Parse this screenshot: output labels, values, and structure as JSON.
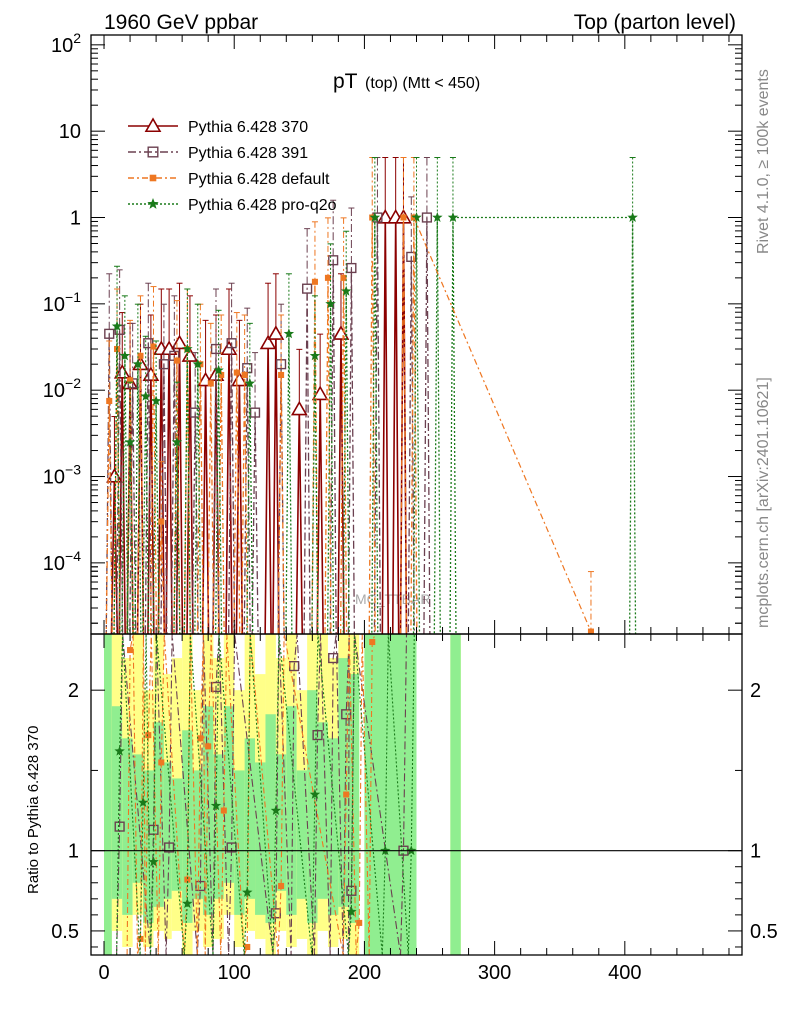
{
  "header": {
    "left_label": "1960 GeV ppbar",
    "right_label": "Top (parton level)"
  },
  "side_labels": {
    "rivet": "Rivet 4.1.0, ≥ 100k events",
    "mcplots": "mcplots.cern.ch [arXiv:2401.10621]"
  },
  "colors": {
    "pythia_370": "#8b0000",
    "pythia_391": "#6b4050",
    "pythia_default": "#ee7722",
    "pythia_pro_q2o": "#1a7a1a",
    "band_green": "#90ee90",
    "band_yellow": "#ffff88"
  },
  "chart_data": [
    {
      "type": "scatter",
      "panel": "main",
      "title": "pT",
      "title_sub": "(top) (Mtt < 450)",
      "watermark": "MC_TTBAR",
      "yscale": "log",
      "ylim": [
        1.5e-05,
        130
      ],
      "xlim": [
        -10,
        490
      ],
      "y_ticks": [
        {
          "value": 100,
          "base": "10",
          "exp": "2"
        },
        {
          "value": 10,
          "base": "10",
          "exp": ""
        },
        {
          "value": 1,
          "base": "1",
          "exp": ""
        },
        {
          "value": 0.1,
          "base": "10",
          "exp": "−1"
        },
        {
          "value": 0.01,
          "base": "10",
          "exp": "−2"
        },
        {
          "value": 0.001,
          "base": "10",
          "exp": "−3"
        },
        {
          "value": 0.0001,
          "base": "10",
          "exp": "−4"
        }
      ],
      "legend": [
        {
          "label": "Pythia 6.428 370",
          "marker": "triangle",
          "dash": "",
          "series": 0
        },
        {
          "label": "Pythia 6.428 391",
          "marker": "square-open",
          "dash": "8,3,2,3",
          "series": 1
        },
        {
          "label": "Pythia 6.428 default",
          "marker": "square-filled",
          "dash": "6,3,2,3",
          "series": 2
        },
        {
          "label": "Pythia 6.428 pro-q2o",
          "marker": "star",
          "dash": "2,2",
          "series": 3
        }
      ],
      "series": [
        {
          "name": "Pythia 6.428 370",
          "x": [
            8,
            14,
            20,
            28,
            36,
            44,
            50,
            58,
            66,
            78,
            86,
            96,
            104,
            126,
            132,
            150,
            166,
            182,
            216,
            224,
            230
          ],
          "y": [
            0.001,
            0.016,
            0.012,
            0.02,
            0.015,
            0.03,
            0.03,
            0.035,
            0.025,
            0.013,
            0.015,
            0.03,
            0.013,
            0.035,
            0.045,
            0.006,
            0.009,
            0.045,
            1.0,
            1.0,
            1.0
          ]
        },
        {
          "name": "Pythia 6.428 391",
          "x": [
            4,
            12,
            22,
            34,
            46,
            54,
            70,
            86,
            98,
            110,
            116,
            136,
            156,
            176,
            190,
            210,
            236,
            248
          ],
          "y": [
            0.045,
            0.05,
            0.012,
            0.035,
            0.02,
            0.025,
            0.0055,
            0.03,
            0.035,
            0.018,
            0.0055,
            0.02,
            0.15,
            0.32,
            0.26,
            1.0,
            0.35,
            1.0
          ]
        },
        {
          "name": "Pythia 6.428 default",
          "x": [
            4,
            10,
            20,
            28,
            38,
            44,
            56,
            64,
            74,
            82,
            90,
            102,
            108,
            136,
            162,
            172,
            184,
            206,
            230,
            238,
            374
          ],
          "y": [
            0.0075,
            0.03,
            0.013,
            0.025,
            0.032,
            0.0003,
            0.022,
            0.03,
            0.02,
            0.012,
            0.015,
            0.016,
            0.015,
            0.015,
            0.18,
            0.2,
            0.2,
            1.0,
            1.0,
            1.0,
            1.6e-05
          ]
        },
        {
          "name": "Pythia 6.428 pro-q2o",
          "x": [
            10,
            16,
            20,
            26,
            32,
            40,
            56,
            64,
            72,
            88,
            112,
            142,
            162,
            174,
            186,
            208,
            240,
            256,
            268,
            406
          ],
          "y": [
            0.055,
            0.025,
            0.0025,
            0.02,
            0.0085,
            0.0075,
            0.0025,
            0.03,
            0.02,
            0.017,
            0.012,
            0.045,
            0.025,
            0.1,
            0.14,
            1.0,
            1.0,
            1.0,
            1.0,
            1.0
          ]
        }
      ]
    },
    {
      "type": "scatter",
      "panel": "ratio",
      "ylabel": "Ratio to Pythia 6.428 370",
      "xlabel": "",
      "xlim": [
        -10,
        490
      ],
      "ylim": [
        0.35,
        2.35
      ],
      "x_ticks": [
        0,
        100,
        200,
        300,
        400
      ],
      "y_ticks": [
        0.5,
        1,
        2
      ],
      "bands": [
        {
          "x0": 0,
          "x1": 6,
          "yellow": [
            0.35,
            2.35
          ],
          "green": [
            0.35,
            2.35
          ]
        },
        {
          "x0": 6,
          "x1": 14,
          "yellow": [
            0.5,
            2.35
          ],
          "green": [
            0.7,
            1.9
          ]
        },
        {
          "x0": 14,
          "x1": 22,
          "yellow": [
            0.4,
            2.2
          ],
          "green": [
            0.6,
            1.7
          ]
        },
        {
          "x0": 22,
          "x1": 30,
          "yellow": [
            0.6,
            2.35
          ],
          "green": [
            0.8,
            1.6
          ]
        },
        {
          "x0": 30,
          "x1": 38,
          "yellow": [
            0.4,
            2.0
          ],
          "green": [
            0.55,
            1.5
          ]
        },
        {
          "x0": 38,
          "x1": 46,
          "yellow": [
            0.5,
            2.35
          ],
          "green": [
            0.65,
            1.8
          ]
        },
        {
          "x0": 46,
          "x1": 52,
          "yellow": [
            0.45,
            2.1
          ],
          "green": [
            0.7,
            1.55
          ]
        },
        {
          "x0": 52,
          "x1": 60,
          "yellow": [
            0.5,
            2.2
          ],
          "green": [
            0.75,
            1.45
          ]
        },
        {
          "x0": 60,
          "x1": 68,
          "yellow": [
            0.35,
            2.35
          ],
          "green": [
            0.55,
            1.75
          ]
        },
        {
          "x0": 68,
          "x1": 76,
          "yellow": [
            0.5,
            2.0
          ],
          "green": [
            0.7,
            1.5
          ]
        },
        {
          "x0": 76,
          "x1": 84,
          "yellow": [
            0.4,
            2.35
          ],
          "green": [
            0.6,
            1.9
          ]
        },
        {
          "x0": 84,
          "x1": 92,
          "yellow": [
            0.45,
            2.2
          ],
          "green": [
            0.7,
            1.6
          ]
        },
        {
          "x0": 92,
          "x1": 100,
          "yellow": [
            0.6,
            2.35
          ],
          "green": [
            0.8,
            1.9
          ]
        },
        {
          "x0": 100,
          "x1": 108,
          "yellow": [
            0.4,
            2.0
          ],
          "green": [
            0.6,
            1.5
          ]
        },
        {
          "x0": 108,
          "x1": 116,
          "yellow": [
            0.5,
            2.35
          ],
          "green": [
            0.7,
            1.7
          ]
        },
        {
          "x0": 116,
          "x1": 124,
          "yellow": [
            0.45,
            2.1
          ],
          "green": [
            0.6,
            1.55
          ]
        },
        {
          "x0": 124,
          "x1": 132,
          "yellow": [
            0.35,
            2.35
          ],
          "green": [
            0.55,
            1.85
          ]
        },
        {
          "x0": 132,
          "x1": 140,
          "yellow": [
            0.5,
            2.2
          ],
          "green": [
            0.75,
            1.6
          ]
        },
        {
          "x0": 140,
          "x1": 148,
          "yellow": [
            0.4,
            2.35
          ],
          "green": [
            0.6,
            1.9
          ]
        },
        {
          "x0": 148,
          "x1": 156,
          "yellow": [
            0.45,
            2.0
          ],
          "green": [
            0.7,
            1.5
          ]
        },
        {
          "x0": 156,
          "x1": 164,
          "yellow": [
            0.35,
            2.35
          ],
          "green": [
            0.55,
            2.0
          ]
        },
        {
          "x0": 164,
          "x1": 172,
          "yellow": [
            0.5,
            2.35
          ],
          "green": [
            0.7,
            1.8
          ]
        },
        {
          "x0": 172,
          "x1": 180,
          "yellow": [
            0.4,
            2.2
          ],
          "green": [
            0.6,
            1.7
          ]
        },
        {
          "x0": 180,
          "x1": 188,
          "yellow": [
            0.45,
            2.35
          ],
          "green": [
            0.65,
            2.2
          ]
        },
        {
          "x0": 188,
          "x1": 196,
          "yellow": [
            0.35,
            2.35
          ],
          "green": [
            0.55,
            2.1
          ]
        },
        {
          "x0": 200,
          "x1": 240,
          "yellow": [
            0.35,
            2.35
          ],
          "green": [
            0.35,
            2.35
          ]
        },
        {
          "x0": 266,
          "x1": 274,
          "yellow": [
            0.35,
            2.35
          ],
          "green": [
            0.35,
            2.35
          ]
        }
      ],
      "series": [
        {
          "name": "Pythia 6.428 391",
          "x": [
            12,
            38,
            50,
            74,
            86,
            98,
            132,
            146,
            164,
            176,
            186,
            190,
            230
          ],
          "y": [
            1.15,
            1.13,
            1.02,
            0.78,
            2.02,
            1.02,
            0.61,
            2.15,
            1.72,
            2.2,
            1.85,
            0.75,
            1.0
          ]
        },
        {
          "name": "Pythia 6.428 default",
          "x": [
            20,
            28,
            34,
            44,
            64,
            74,
            80,
            92,
            110,
            136,
            186,
            196,
            206
          ],
          "y": [
            2.25,
            0.45,
            1.72,
            1.55,
            0.82,
            1.7,
            1.65,
            1.25,
            0.4,
            0.78,
            1.35,
            0.55,
            2.3
          ]
        },
        {
          "name": "Pythia 6.428 pro-q2o",
          "x": [
            12,
            30,
            38,
            64,
            86,
            110,
            132,
            162,
            190,
            216,
            236
          ],
          "y": [
            1.62,
            1.3,
            0.93,
            0.67,
            1.28,
            0.74,
            1.25,
            1.35,
            0.62,
            1.0,
            1.0
          ]
        }
      ]
    }
  ]
}
